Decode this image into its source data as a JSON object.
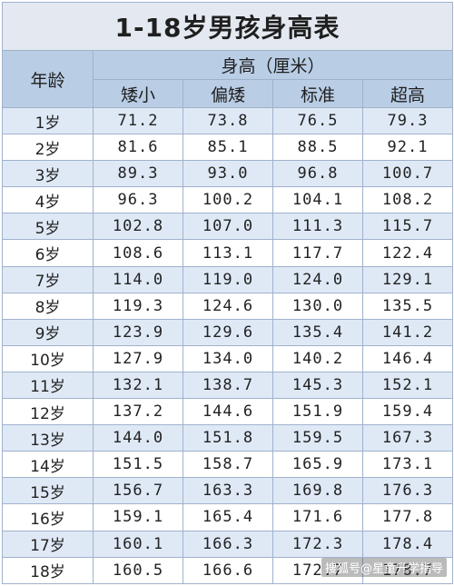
{
  "title": "1-18岁男孩身高表",
  "header": {
    "age": "年龄",
    "group": "身高（厘米）",
    "cols": [
      "矮小",
      "偏矮",
      "标准",
      "超高"
    ]
  },
  "rows": [
    {
      "age": "1岁",
      "v": [
        "71.2",
        "73.8",
        "76.5",
        "79.3"
      ]
    },
    {
      "age": "2岁",
      "v": [
        "81.6",
        "85.1",
        "88.5",
        "92.1"
      ]
    },
    {
      "age": "3岁",
      "v": [
        "89.3",
        "93.0",
        "96.8",
        "100.7"
      ]
    },
    {
      "age": "4岁",
      "v": [
        "96.3",
        "100.2",
        "104.1",
        "108.2"
      ]
    },
    {
      "age": "5岁",
      "v": [
        "102.8",
        "107.0",
        "111.3",
        "115.7"
      ]
    },
    {
      "age": "6岁",
      "v": [
        "108.6",
        "113.1",
        "117.7",
        "122.4"
      ]
    },
    {
      "age": "7岁",
      "v": [
        "114.0",
        "119.0",
        "124.0",
        "129.1"
      ]
    },
    {
      "age": "8岁",
      "v": [
        "119.3",
        "124.6",
        "130.0",
        "135.5"
      ]
    },
    {
      "age": "9岁",
      "v": [
        "123.9",
        "129.6",
        "135.4",
        "141.2"
      ]
    },
    {
      "age": "10岁",
      "v": [
        "127.9",
        "134.0",
        "140.2",
        "146.4"
      ]
    },
    {
      "age": "11岁",
      "v": [
        "132.1",
        "138.7",
        "145.3",
        "152.1"
      ]
    },
    {
      "age": "12岁",
      "v": [
        "137.2",
        "144.6",
        "151.9",
        "159.4"
      ]
    },
    {
      "age": "13岁",
      "v": [
        "144.0",
        "151.8",
        "159.5",
        "167.3"
      ]
    },
    {
      "age": "14岁",
      "v": [
        "151.5",
        "158.7",
        "165.9",
        "173.1"
      ]
    },
    {
      "age": "15岁",
      "v": [
        "156.7",
        "163.3",
        "169.8",
        "176.3"
      ]
    },
    {
      "age": "16岁",
      "v": [
        "159.1",
        "165.4",
        "171.6",
        "177.8"
      ]
    },
    {
      "age": "17岁",
      "v": [
        "160.1",
        "166.3",
        "172.3",
        "178.4"
      ]
    },
    {
      "age": "18岁",
      "v": [
        "160.5",
        "166.6",
        "172.7",
        "178.7"
      ]
    }
  ],
  "watermark": "搜狐号@星童升学指导",
  "colors": {
    "header_bg": "#b9cde5",
    "stripe_bg": "#dfe9f6",
    "title_bg": "#e4e9f1",
    "border": "#9fb2cc"
  }
}
